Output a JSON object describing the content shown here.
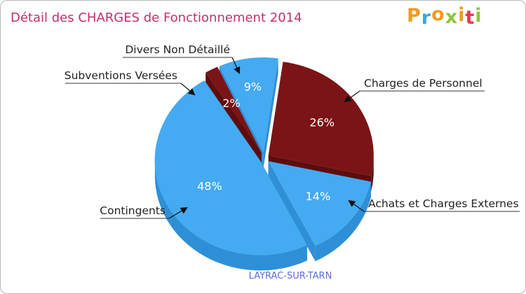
{
  "chart_data": {
    "type": "pie",
    "title": "Détail des CHARGES de Fonctionnement 2014",
    "subtitle": "LAYRAC-SUR-TARN",
    "categories": [
      "Charges de Personnel",
      "Achats et Charges Externes",
      "Contingents",
      "Subventions Versées",
      "Divers Non Détaillé"
    ],
    "values": [
      26,
      14,
      48,
      2,
      9
    ],
    "value_labels": [
      "26%",
      "14%",
      "48%",
      "2%",
      "9%"
    ],
    "colors": [
      "#7b1416",
      "#44aaf2",
      "#44aaf2",
      "#7b1416",
      "#44aaf2"
    ],
    "side_colors": [
      "#5e0d0e",
      "#2f8fd6",
      "#2f8fd6",
      "#5e0d0e",
      "#2f8fd6"
    ]
  },
  "brand": {
    "letters": [
      "P",
      "r",
      "o",
      "x",
      "i",
      "t",
      "i"
    ],
    "colors": [
      "#f29a1f",
      "#33a8e0",
      "#f29a1f",
      "#8cc63f",
      "#f29a1f",
      "#e5374b",
      "#8cc63f"
    ]
  }
}
